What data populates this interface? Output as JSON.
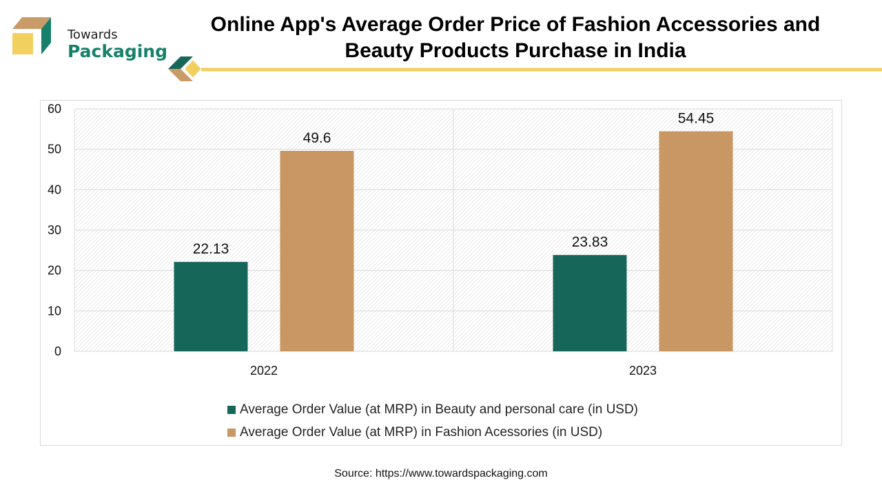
{
  "logo": {
    "line1": "Towards",
    "line2": "Packaging"
  },
  "title": "Online App's Average Order Price of Fashion Accessories and Beauty Products Purchase in India",
  "source": "Source: https://www.towardspackaging.com",
  "colors": {
    "beauty": "#17665a",
    "fashion": "#c99763",
    "accent_yellow": "#f2d060",
    "logo_green": "#17806a",
    "logo_tan": "#c89b68"
  },
  "chart_data": {
    "type": "bar",
    "categories": [
      "2022",
      "2023"
    ],
    "series": [
      {
        "name": "Average Order Value (at MRP) in Beauty and personal care (in USD)",
        "values": [
          22.13,
          23.83
        ],
        "color": "#17665a"
      },
      {
        "name": "Average Order Value (at MRP) in Fashion Acessories (in USD)",
        "values": [
          49.6,
          54.45
        ],
        "color": "#c99763"
      }
    ],
    "ylim": [
      0,
      60
    ],
    "yticks": [
      0,
      10,
      20,
      30,
      40,
      50,
      60
    ],
    "data_labels": [
      [
        "22.13",
        "23.83"
      ],
      [
        "49.6",
        "54.45"
      ]
    ],
    "grid": true,
    "legend_position": "bottom"
  }
}
